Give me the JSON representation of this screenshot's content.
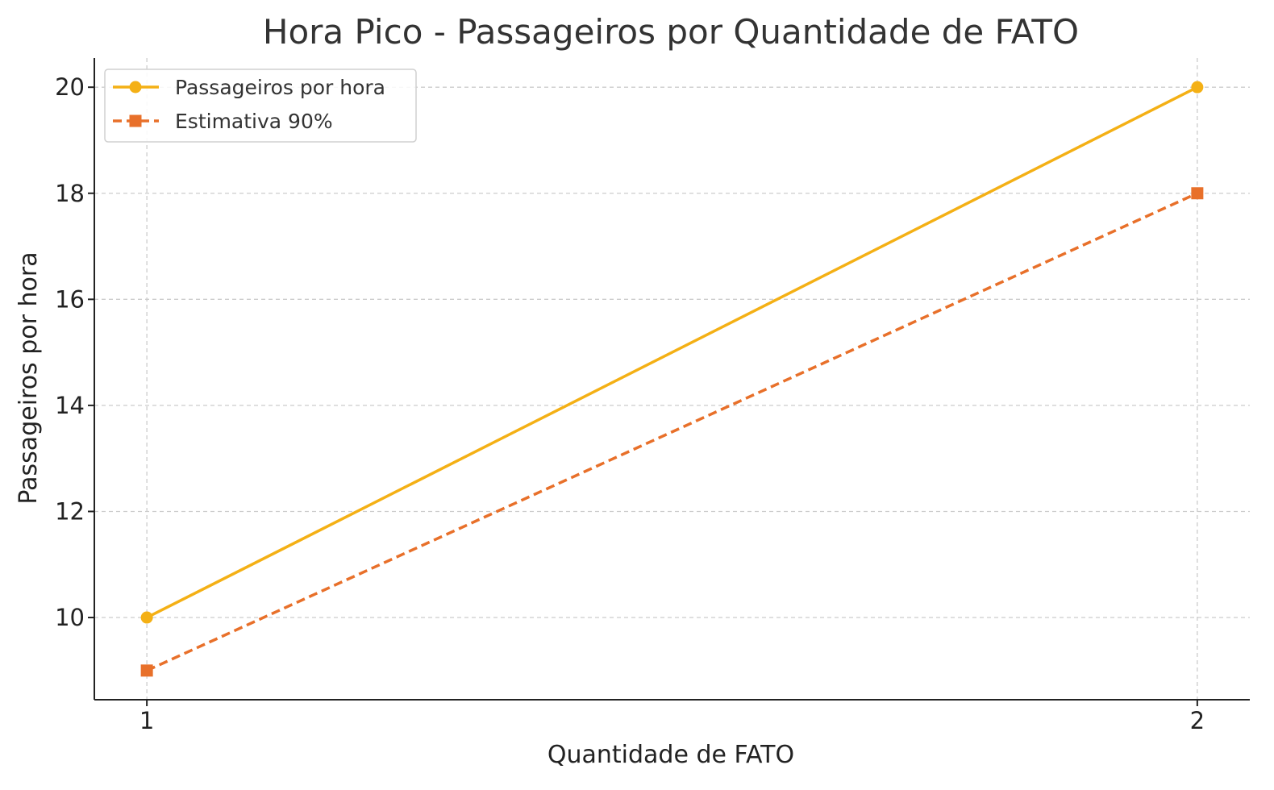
{
  "chart_data": {
    "type": "line",
    "title": "Hora Pico - Passageiros por Quantidade de FATO",
    "xlabel": "Quantidade de FATO",
    "ylabel": "Passageiros por hora",
    "x": [
      1,
      2
    ],
    "x_tick_labels": [
      "1",
      "2"
    ],
    "xlim": [
      0.95,
      2.05
    ],
    "ylim": [
      8.45,
      20.55
    ],
    "y_ticks": [
      10,
      12,
      14,
      16,
      18,
      20
    ],
    "y_tick_labels": [
      "10",
      "12",
      "14",
      "16",
      "18",
      "20"
    ],
    "grid": true,
    "legend_position": "top-left",
    "series": [
      {
        "name": "Passageiros por hora",
        "values": [
          10,
          20
        ],
        "color": "#F4B015",
        "line_style": "solid",
        "marker": "circle"
      },
      {
        "name": "Estimativa 90%",
        "values": [
          9,
          18
        ],
        "color": "#E8702A",
        "line_style": "dashed",
        "marker": "square"
      }
    ]
  }
}
